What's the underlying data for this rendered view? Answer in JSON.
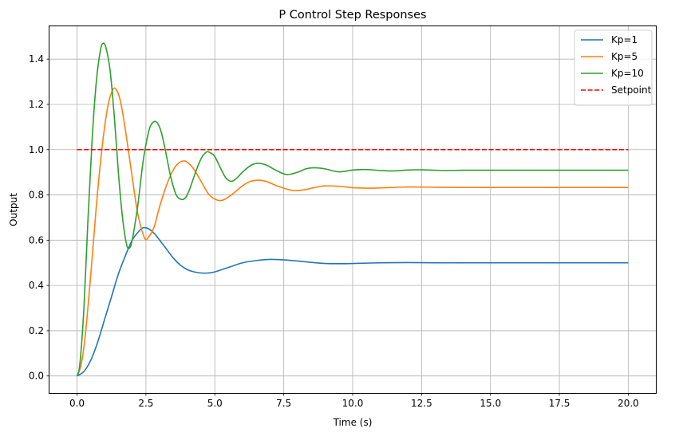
{
  "chart_data": {
    "type": "line",
    "title": "P Control Step Responses",
    "xlabel": "Time (s)",
    "ylabel": "Output",
    "xlim": [
      -1.0,
      21.0
    ],
    "ylim": [
      -0.075,
      1.545
    ],
    "xticks": [
      0.0,
      2.5,
      5.0,
      7.5,
      10.0,
      12.5,
      15.0,
      17.5,
      20.0
    ],
    "xtick_labels": [
      "0.0",
      "2.5",
      "5.0",
      "7.5",
      "10.0",
      "12.5",
      "15.0",
      "17.5",
      "20.0"
    ],
    "yticks": [
      0.0,
      0.2,
      0.4,
      0.6,
      0.8,
      1.0,
      1.2,
      1.4
    ],
    "ytick_labels": [
      "0.0",
      "0.2",
      "0.4",
      "0.6",
      "0.8",
      "1.0",
      "1.2",
      "1.4"
    ],
    "grid": true,
    "legend_position": "top-right",
    "series": [
      {
        "name": "Kp=1",
        "color": "#1f77b4",
        "style": "solid",
        "x": [
          0,
          0.25,
          0.5,
          0.75,
          1.0,
          1.25,
          1.5,
          1.75,
          2.0,
          2.25,
          2.4,
          2.6,
          2.8,
          3.0,
          3.25,
          3.5,
          3.75,
          4.0,
          4.25,
          4.5,
          4.75,
          5.0,
          5.5,
          6.0,
          6.5,
          7.0,
          7.5,
          8.0,
          8.5,
          9.0,
          9.5,
          10.0,
          11.0,
          12.0,
          13.0,
          14.0,
          15.0,
          16.0,
          17.0,
          18.0,
          19.0,
          20.0
        ],
        "y": [
          0.0,
          0.02,
          0.07,
          0.15,
          0.25,
          0.35,
          0.45,
          0.53,
          0.6,
          0.64,
          0.655,
          0.65,
          0.63,
          0.6,
          0.56,
          0.52,
          0.49,
          0.47,
          0.46,
          0.455,
          0.455,
          0.46,
          0.48,
          0.5,
          0.51,
          0.515,
          0.513,
          0.508,
          0.502,
          0.497,
          0.496,
          0.497,
          0.5,
          0.501,
          0.5,
          0.5,
          0.5,
          0.5,
          0.5,
          0.5,
          0.5,
          0.5
        ]
      },
      {
        "name": "Kp=5",
        "color": "#ff7f0e",
        "style": "solid",
        "x": [
          0,
          0.15,
          0.3,
          0.5,
          0.7,
          0.9,
          1.1,
          1.3,
          1.45,
          1.6,
          1.8,
          2.0,
          2.2,
          2.45,
          2.6,
          2.8,
          3.0,
          3.3,
          3.6,
          3.9,
          4.2,
          4.5,
          4.8,
          5.2,
          5.6,
          6.0,
          6.3,
          6.6,
          6.9,
          7.3,
          7.8,
          8.2,
          8.6,
          9.0,
          9.5,
          10.0,
          10.5,
          11.0,
          12.0,
          13.0,
          14.0,
          15.0,
          16.0,
          17.0,
          18.0,
          19.0,
          20.0
        ],
        "y": [
          0.0,
          0.05,
          0.18,
          0.45,
          0.75,
          1.0,
          1.18,
          1.265,
          1.26,
          1.2,
          1.05,
          0.88,
          0.72,
          0.61,
          0.615,
          0.66,
          0.75,
          0.86,
          0.93,
          0.95,
          0.92,
          0.86,
          0.8,
          0.775,
          0.8,
          0.84,
          0.86,
          0.865,
          0.858,
          0.838,
          0.82,
          0.822,
          0.832,
          0.84,
          0.838,
          0.832,
          0.83,
          0.831,
          0.835,
          0.834,
          0.833,
          0.833,
          0.833,
          0.833,
          0.833,
          0.833,
          0.833
        ]
      },
      {
        "name": "Kp=10",
        "color": "#2ca02c",
        "style": "solid",
        "x": [
          0,
          0.1,
          0.25,
          0.4,
          0.55,
          0.7,
          0.85,
          0.95,
          1.05,
          1.2,
          1.35,
          1.5,
          1.65,
          1.8,
          1.9,
          2.0,
          2.2,
          2.4,
          2.6,
          2.75,
          2.9,
          3.05,
          3.2,
          3.4,
          3.6,
          3.8,
          3.95,
          4.1,
          4.3,
          4.5,
          4.7,
          4.85,
          5.0,
          5.2,
          5.4,
          5.6,
          5.8,
          6.0,
          6.3,
          6.6,
          6.9,
          7.2,
          7.6,
          8.0,
          8.3,
          8.6,
          9.0,
          9.5,
          10.0,
          10.5,
          11.0,
          11.5,
          12.0,
          12.5,
          13.0,
          13.5,
          14.0,
          15.0,
          16.0,
          17.0,
          18.0,
          19.0,
          20.0
        ],
        "y": [
          0.0,
          0.05,
          0.3,
          0.7,
          1.05,
          1.3,
          1.44,
          1.47,
          1.45,
          1.35,
          1.15,
          0.9,
          0.7,
          0.58,
          0.565,
          0.6,
          0.75,
          0.95,
          1.08,
          1.12,
          1.12,
          1.08,
          1.0,
          0.88,
          0.8,
          0.78,
          0.79,
          0.83,
          0.9,
          0.96,
          0.99,
          0.985,
          0.97,
          0.92,
          0.875,
          0.86,
          0.875,
          0.9,
          0.93,
          0.94,
          0.93,
          0.91,
          0.89,
          0.9,
          0.915,
          0.92,
          0.915,
          0.902,
          0.91,
          0.912,
          0.908,
          0.906,
          0.91,
          0.911,
          0.909,
          0.908,
          0.909,
          0.909,
          0.909,
          0.909,
          0.909,
          0.909,
          0.909
        ]
      },
      {
        "name": "Setpoint",
        "color": "#ff0000",
        "style": "dashed",
        "x": [
          0,
          20
        ],
        "y": [
          1.0,
          1.0
        ]
      }
    ]
  }
}
